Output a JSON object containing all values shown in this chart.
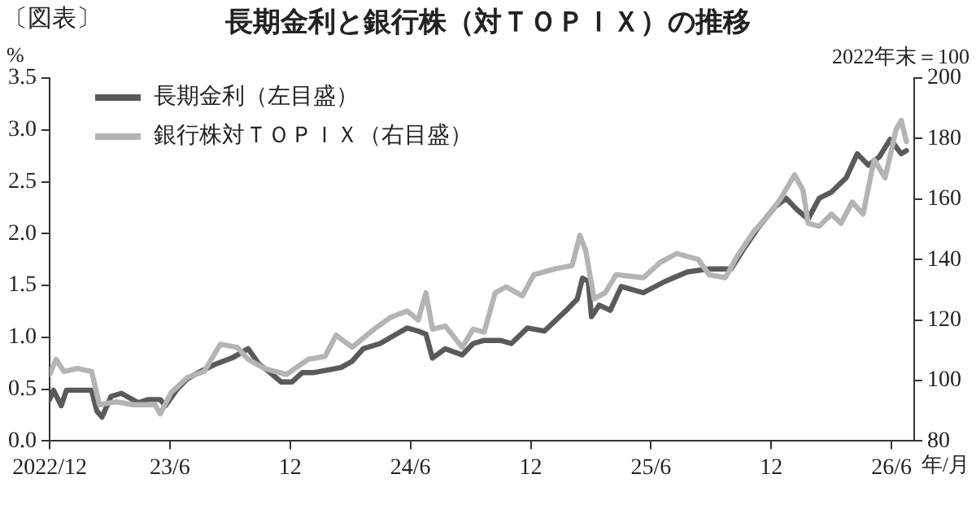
{
  "chart_data": {
    "type": "line",
    "title": "長期金利と銀行株（対ＴＯＰＩＸ）の推移",
    "ylabel": "%",
    "y2label": "2022年末＝100",
    "xlabel": "年/月",
    "annotations": [
      "〔図表〕"
    ],
    "xlim": [
      "2022-12-01",
      "2026-07-05"
    ],
    "xticks": [
      {
        "value": "2022-12-01",
        "label": "2022/12"
      },
      {
        "value": "2023-06-01",
        "label": "23/6"
      },
      {
        "value": "2023-12-01",
        "label": "12"
      },
      {
        "value": "2024-06-01",
        "label": "24/6"
      },
      {
        "value": "2024-12-01",
        "label": "12"
      },
      {
        "value": "2025-06-01",
        "label": "25/6"
      },
      {
        "value": "2025-12-01",
        "label": "12"
      },
      {
        "value": "2026-06-01",
        "label": "26/6"
      }
    ],
    "ylim": [
      0,
      3.5
    ],
    "yticks": [
      {
        "value": 0,
        "label": "0.0"
      },
      0.5,
      {
        "value": 1,
        "label": "1.0"
      },
      1.5,
      {
        "value": 2,
        "label": "2.0"
      },
      2.5,
      {
        "value": 3,
        "label": "3.0"
      },
      3.5
    ],
    "y2lim": [
      80,
      200
    ],
    "y2ticks": [
      80,
      100,
      120,
      140,
      160,
      180,
      200
    ],
    "grid": false,
    "legend": "top left",
    "marker": "none",
    "line_style": "solid",
    "series": [
      {
        "name": "長期金利（左目盛）",
        "color": "#5a5a5a",
        "axis": "y",
        "x": [
          "2022-12-01",
          "2022-12-07",
          "2022-12-19",
          "2022-12-27",
          "2023-02-04",
          "2023-02-12",
          "2023-02-20",
          "2023-03-03",
          "2023-03-19",
          "2023-04-14",
          "2023-04-30",
          "2023-05-17",
          "2023-05-25",
          "2023-06-11",
          "2023-06-28",
          "2023-07-14",
          "2023-08-09",
          "2023-09-04",
          "2023-09-29",
          "2023-10-15",
          "2023-11-01",
          "2023-11-18",
          "2023-12-04",
          "2023-12-20",
          "2024-01-07",
          "2024-02-02",
          "2024-02-18",
          "2024-03-04",
          "2024-03-21",
          "2024-04-16",
          "2024-05-10",
          "2024-05-27",
          "2024-06-13",
          "2024-06-25",
          "2024-07-04",
          "2024-07-24",
          "2024-08-19",
          "2024-09-05",
          "2024-09-22",
          "2024-10-16",
          "2024-11-02",
          "2024-11-27",
          "2024-12-22",
          "2025-01-25",
          "2025-02-11",
          "2025-02-19",
          "2025-02-28",
          "2025-03-02",
          "2025-03-14",
          "2025-03-31",
          "2025-04-17",
          "2025-05-20",
          "2025-06-23",
          "2025-07-26",
          "2025-08-29",
          "2025-10-01",
          "2025-10-18",
          "2025-11-12",
          "2025-12-07",
          "2025-12-24",
          "2026-01-10",
          "2026-01-27",
          "2026-02-13",
          "2026-03-01",
          "2026-03-24",
          "2026-04-10",
          "2026-04-27",
          "2026-05-13",
          "2026-05-30",
          "2026-06-16",
          "2026-06-24"
        ],
        "values": [
          0.4,
          0.49,
          0.34,
          0.49,
          0.49,
          0.29,
          0.23,
          0.43,
          0.46,
          0.37,
          0.4,
          0.4,
          0.34,
          0.49,
          0.6,
          0.66,
          0.74,
          0.8,
          0.89,
          0.74,
          0.66,
          0.57,
          0.57,
          0.66,
          0.66,
          0.69,
          0.71,
          0.77,
          0.89,
          0.94,
          1.03,
          1.09,
          1.06,
          1.03,
          0.8,
          0.89,
          0.83,
          0.94,
          0.97,
          0.97,
          0.94,
          1.09,
          1.06,
          1.26,
          1.37,
          1.57,
          1.54,
          1.2,
          1.31,
          1.26,
          1.49,
          1.43,
          1.54,
          1.63,
          1.66,
          1.66,
          1.83,
          2.06,
          2.26,
          2.34,
          2.23,
          2.14,
          2.34,
          2.4,
          2.54,
          2.77,
          2.66,
          2.74,
          2.91,
          2.77,
          2.8
        ]
      },
      {
        "name": "銀行株対ＴＯＰＩＸ（右目盛）",
        "color": "#b4b4b4",
        "axis": "y2",
        "x": [
          "2022-12-01",
          "2022-12-11",
          "2022-12-23",
          "2023-01-13",
          "2023-02-04",
          "2023-02-16",
          "2023-03-11",
          "2023-04-06",
          "2023-05-09",
          "2023-05-17",
          "2023-06-03",
          "2023-06-28",
          "2023-07-23",
          "2023-08-17",
          "2023-09-12",
          "2023-09-29",
          "2023-10-23",
          "2023-11-26",
          "2023-12-29",
          "2024-01-24",
          "2024-02-10",
          "2024-03-04",
          "2024-04-07",
          "2024-05-02",
          "2024-05-27",
          "2024-06-13",
          "2024-06-25",
          "2024-07-04",
          "2024-07-24",
          "2024-08-19",
          "2024-09-05",
          "2024-09-22",
          "2024-10-08",
          "2024-10-25",
          "2024-11-19",
          "2024-12-06",
          "2025-01-09",
          "2025-02-03",
          "2025-02-15",
          "2025-02-24",
          "2025-03-06",
          "2025-03-23",
          "2025-04-09",
          "2025-05-20",
          "2025-06-15",
          "2025-07-10",
          "2025-08-12",
          "2025-08-29",
          "2025-09-23",
          "2025-10-10",
          "2025-11-04",
          "2025-11-29",
          "2025-12-15",
          "2026-01-06",
          "2026-01-19",
          "2026-01-27",
          "2026-02-13",
          "2026-03-01",
          "2026-03-16",
          "2026-04-02",
          "2026-04-19",
          "2026-05-05",
          "2026-05-22",
          "2026-06-08",
          "2026-06-16",
          "2026-06-24"
        ],
        "values": [
          102,
          107,
          103,
          104,
          103,
          92,
          93,
          92,
          92,
          89,
          96,
          101,
          103,
          112,
          111,
          107,
          104,
          102,
          107,
          108,
          115,
          111,
          117,
          121,
          123,
          120,
          129,
          117,
          118,
          111,
          117,
          116,
          129,
          131,
          128,
          135,
          137,
          138,
          148,
          143,
          127,
          129,
          135,
          134,
          139,
          142,
          140,
          135,
          134,
          141,
          149,
          155,
          160,
          168,
          163,
          152,
          151,
          155,
          152,
          159,
          155,
          173,
          167,
          183,
          186,
          179
        ]
      }
    ]
  }
}
